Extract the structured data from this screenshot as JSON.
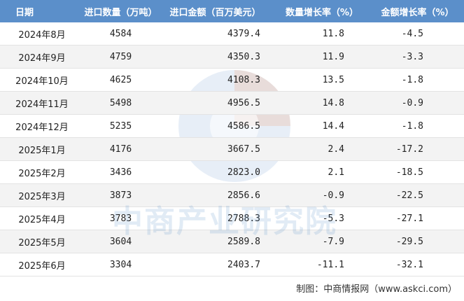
{
  "table": {
    "header": [
      "日期",
      "进口数量（万吨）",
      "进口金额（百万美元）",
      "数量增长率（%）",
      "金额增长率（%）"
    ],
    "rows": [
      [
        "2024年8月",
        "4584",
        "4379.4",
        "11.8",
        "-4.5"
      ],
      [
        "2024年9月",
        "4759",
        "4350.3",
        "11.9",
        "-3.3"
      ],
      [
        "2024年10月",
        "4625",
        "4108.3",
        "13.5",
        "-1.8"
      ],
      [
        "2024年11月",
        "5498",
        "4956.5",
        "14.8",
        "-0.9"
      ],
      [
        "2024年12月",
        "5235",
        "4586.5",
        "14.4",
        "-1.8"
      ],
      [
        "2025年1月",
        "4176",
        "3667.5",
        "2.4",
        "-17.2"
      ],
      [
        "2025年2月",
        "3436",
        "2823.0",
        "2.1",
        "-18.5"
      ],
      [
        "2025年3月",
        "3873",
        "2856.6",
        "-0.9",
        "-22.5"
      ],
      [
        "2025年4月",
        "3783",
        "2788.3",
        "-5.3",
        "-27.1"
      ],
      [
        "2025年5月",
        "3604",
        "2589.8",
        "-7.9",
        "-29.5"
      ],
      [
        "2025年6月",
        "3304",
        "2403.7",
        "-11.1",
        "-32.1"
      ]
    ]
  },
  "watermark": "中商产业研究院",
  "footer": "制图：中商情报网（www.askci.com）"
}
